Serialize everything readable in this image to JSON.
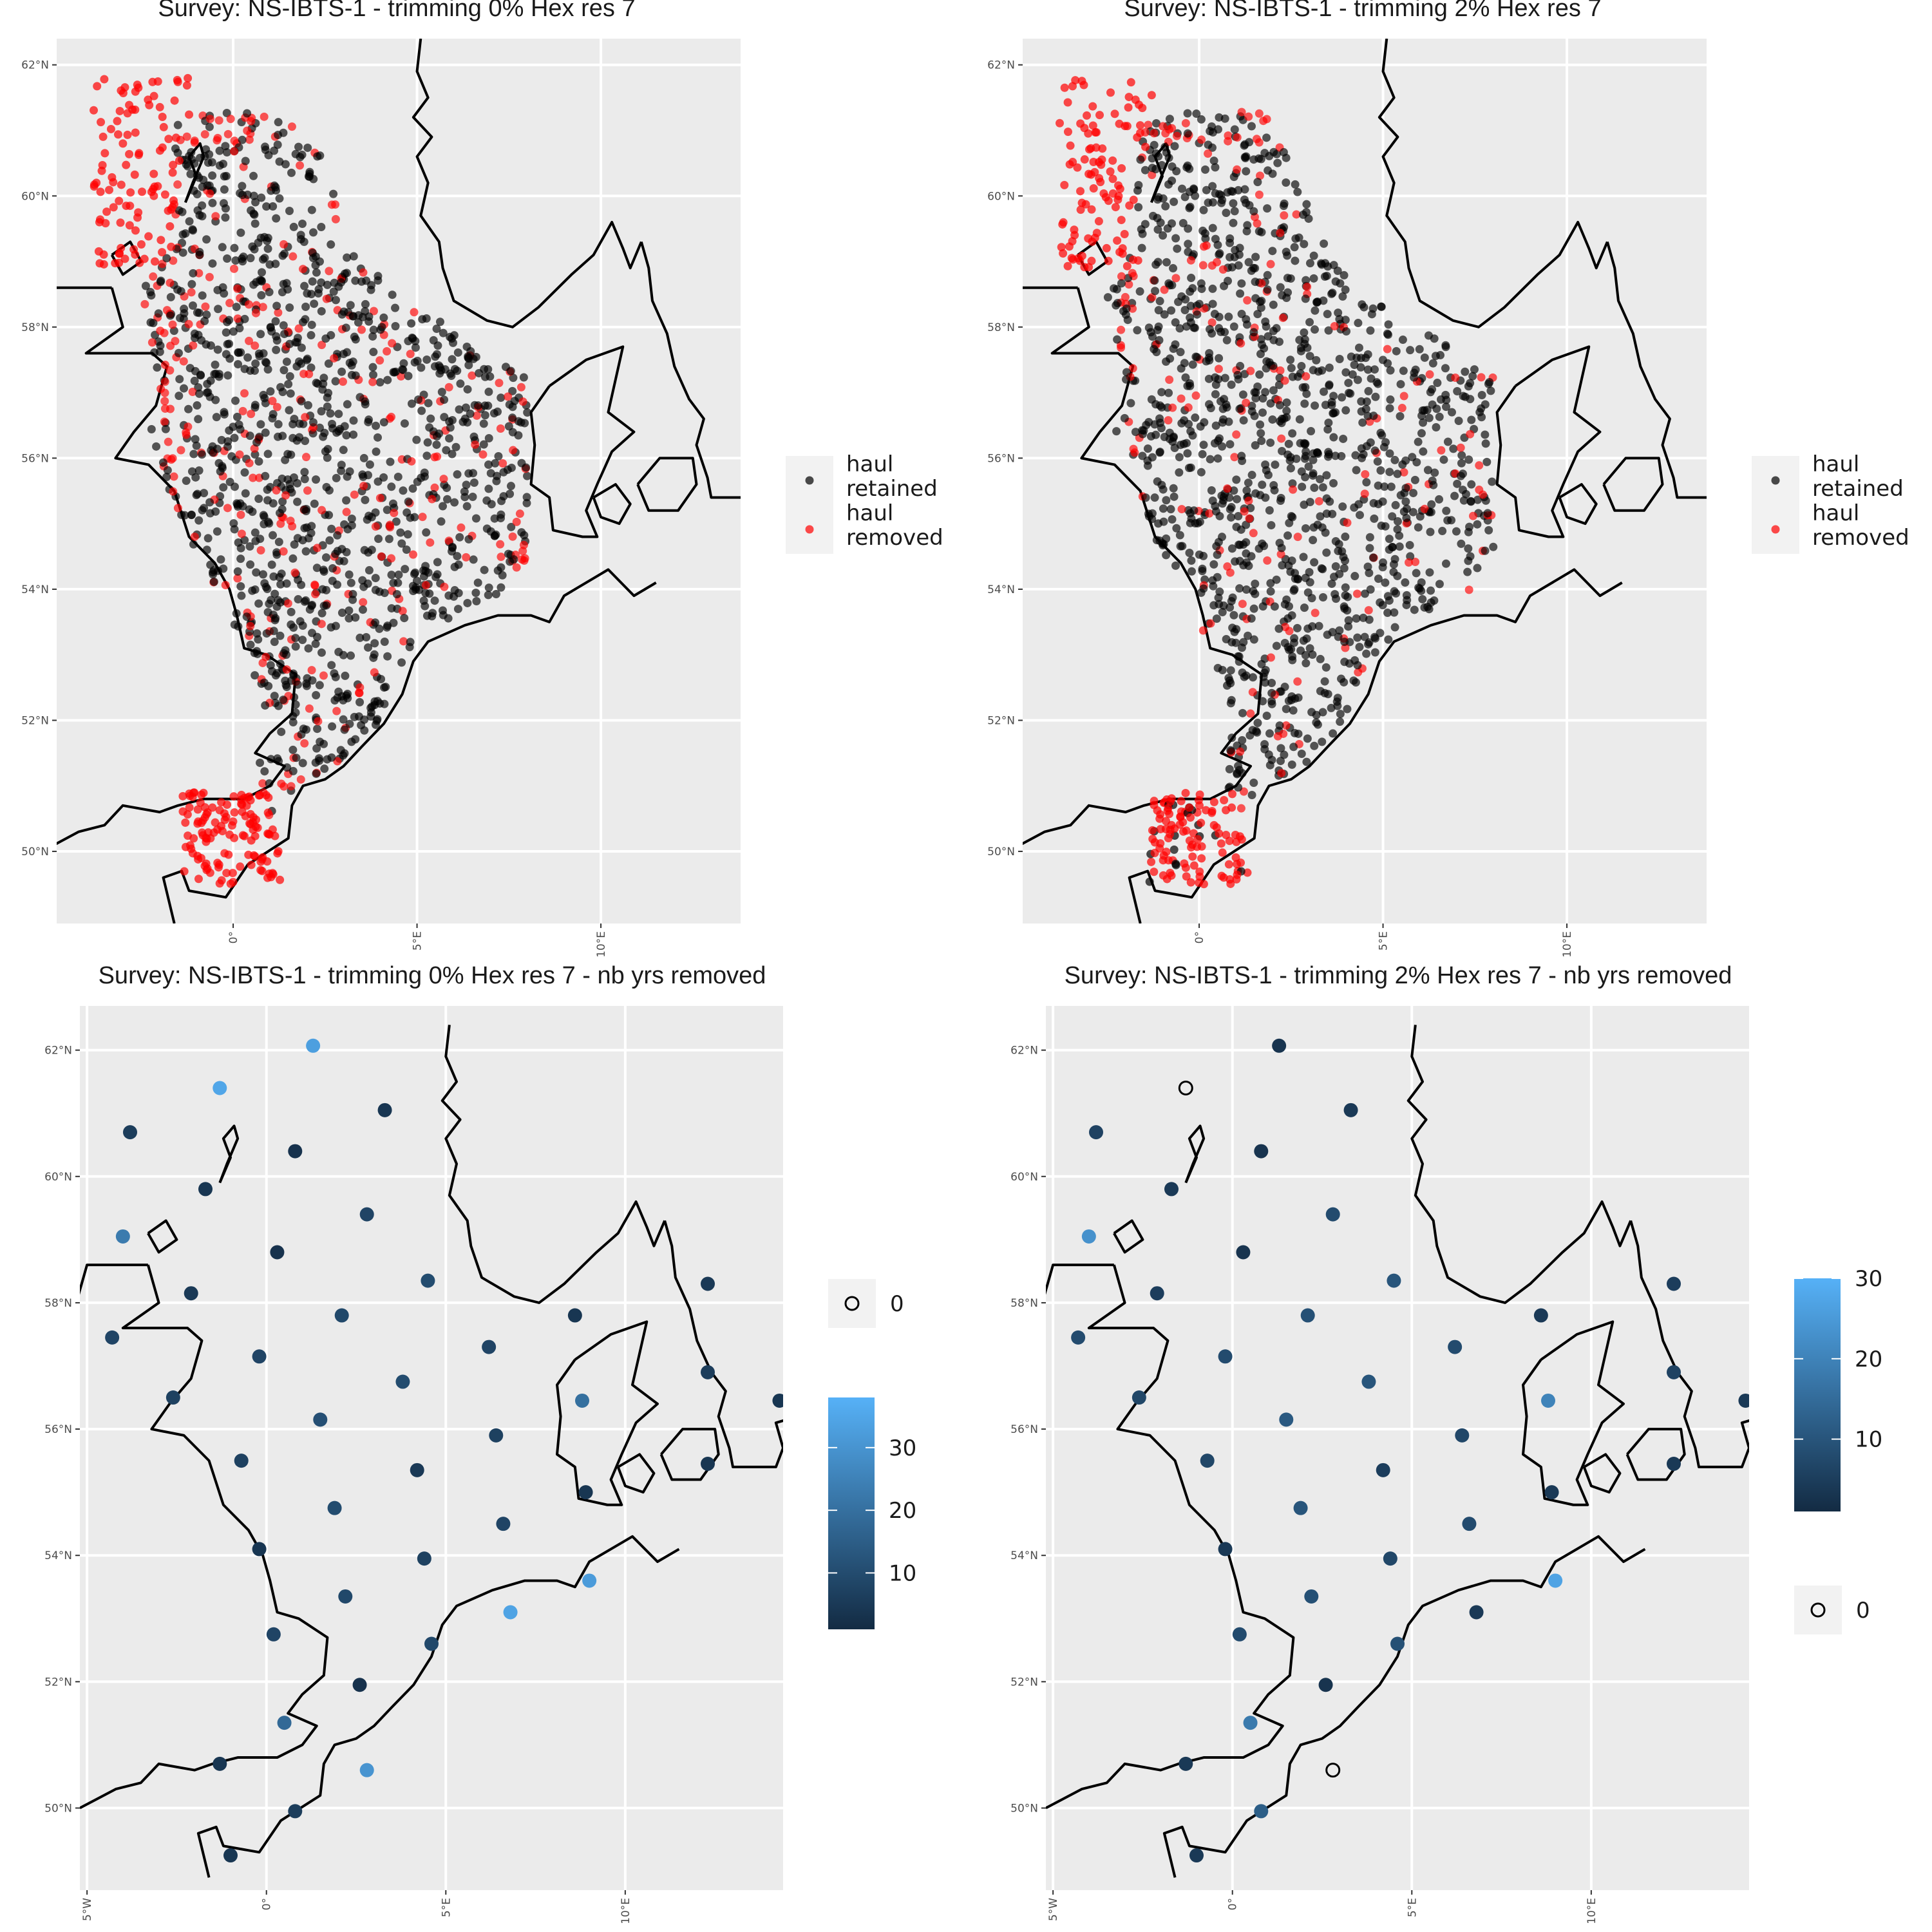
{
  "chart_data": [
    {
      "type": "scatter",
      "title": "Survey: NS-IBTS-1 - trimming 0% Hex res 7",
      "xlim": [
        -4.8,
        13.8
      ],
      "ylim": [
        48.9,
        62.4
      ],
      "x_ticks": [
        {
          "v": 0,
          "label": "0°"
        },
        {
          "v": 5,
          "label": "5°E"
        },
        {
          "v": 10,
          "label": "10°E"
        }
      ],
      "y_ticks": [
        {
          "v": 50,
          "label": "50°N"
        },
        {
          "v": 52,
          "label": "52°N"
        },
        {
          "v": 54,
          "label": "54°N"
        },
        {
          "v": 56,
          "label": "56°N"
        },
        {
          "v": 58,
          "label": "58°N"
        },
        {
          "v": 60,
          "label": "60°N"
        },
        {
          "v": 62,
          "label": "62°N"
        }
      ],
      "grid": true,
      "legend_placement": "right",
      "legend": [
        {
          "label_lines": [
            "haul",
            "retained"
          ],
          "color": "#000000"
        },
        {
          "label_lines": [
            "haul",
            "removed"
          ],
          "color": "#ff0000"
        }
      ],
      "series": [
        {
          "name": "haul retained",
          "color": "#000000",
          "note": "dense cloud of hauls covering the North Sea, English Channel and Skagerrak/Kattegat"
        },
        {
          "name": "haul removed",
          "color": "#ff0000",
          "note": "removed hauls at the Shetland margin, northern edge, English Channel and German Bight coast"
        }
      ]
    },
    {
      "type": "scatter",
      "title": "Survey: NS-IBTS-1 - trimming 2% Hex res 7",
      "xlim": [
        -4.8,
        13.8
      ],
      "ylim": [
        48.9,
        62.4
      ],
      "x_ticks": [
        {
          "v": 0,
          "label": "0°"
        },
        {
          "v": 5,
          "label": "5°E"
        },
        {
          "v": 10,
          "label": "10°E"
        }
      ],
      "y_ticks": [
        {
          "v": 50,
          "label": "50°N"
        },
        {
          "v": 52,
          "label": "52°N"
        },
        {
          "v": 54,
          "label": "54°N"
        },
        {
          "v": 56,
          "label": "56°N"
        },
        {
          "v": 58,
          "label": "58°N"
        },
        {
          "v": 60,
          "label": "60°N"
        },
        {
          "v": 62,
          "label": "62°N"
        }
      ],
      "grid": true,
      "legend_placement": "right",
      "legend": [
        {
          "label_lines": [
            "haul",
            "retained"
          ],
          "color": "#000000"
        },
        {
          "label_lines": [
            "haul",
            "removed"
          ],
          "color": "#ff0000"
        }
      ],
      "series": [
        {
          "name": "haul retained",
          "color": "#000000",
          "note": "dense cloud of hauls covering the North Sea and Skagerrak/Kattegat"
        },
        {
          "name": "haul removed",
          "color": "#ff0000",
          "note": "removed hauls mainly west of Shetland, English Channel and Dutch/German coast"
        }
      ]
    },
    {
      "type": "scatter",
      "title": "Survey: NS-IBTS-1 - trimming 0% Hex res 7 - nb yrs removed",
      "xlim": [
        -5.2,
        14.4
      ],
      "ylim": [
        48.7,
        62.7
      ],
      "x_ticks": [
        {
          "v": -5,
          "label": "5°W"
        },
        {
          "v": 0,
          "label": "0°"
        },
        {
          "v": 5,
          "label": "5°E"
        },
        {
          "v": 10,
          "label": "10°E"
        }
      ],
      "y_ticks": [
        {
          "v": 50,
          "label": "50°N"
        },
        {
          "v": 52,
          "label": "52°N"
        },
        {
          "v": 54,
          "label": "54°N"
        },
        {
          "v": 56,
          "label": "56°N"
        },
        {
          "v": 58,
          "label": "58°N"
        },
        {
          "v": 60,
          "label": "60°N"
        },
        {
          "v": 62,
          "label": "62°N"
        }
      ],
      "grid": true,
      "legend_placement": "right",
      "legend_open": {
        "label": "0"
      },
      "colorbar": {
        "min": 1,
        "max": 38,
        "ticks": [
          10,
          20,
          30
        ],
        "low": "#132b43",
        "high": "#56b1f7",
        "order": "open-first"
      },
      "points": [
        {
          "lon": 1.3,
          "lat": 62.07,
          "v": 33
        },
        {
          "lon": -1.3,
          "lat": 61.4,
          "v": 35
        },
        {
          "lon": -3.8,
          "lat": 60.7,
          "v": 6
        },
        {
          "lon": 3.3,
          "lat": 61.05,
          "v": 4
        },
        {
          "lon": 0.8,
          "lat": 60.4,
          "v": 3
        },
        {
          "lon": -1.7,
          "lat": 59.8,
          "v": 4
        },
        {
          "lon": -4.0,
          "lat": 59.05,
          "v": 23
        },
        {
          "lon": 2.8,
          "lat": 59.4,
          "v": 8
        },
        {
          "lon": 0.3,
          "lat": 58.8,
          "v": 3
        },
        {
          "lon": 4.5,
          "lat": 58.35,
          "v": 10
        },
        {
          "lon": -2.1,
          "lat": 58.15,
          "v": 5
        },
        {
          "lon": 12.3,
          "lat": 58.3,
          "v": 5
        },
        {
          "lon": 8.6,
          "lat": 57.8,
          "v": 4
        },
        {
          "lon": 2.1,
          "lat": 57.8,
          "v": 9
        },
        {
          "lon": -4.3,
          "lat": 57.45,
          "v": 8
        },
        {
          "lon": 6.2,
          "lat": 57.3,
          "v": 8
        },
        {
          "lon": -0.2,
          "lat": 57.15,
          "v": 8
        },
        {
          "lon": 3.8,
          "lat": 56.75,
          "v": 10
        },
        {
          "lon": 12.3,
          "lat": 56.9,
          "v": 6
        },
        {
          "lon": -2.6,
          "lat": 56.5,
          "v": 7
        },
        {
          "lon": 8.8,
          "lat": 56.45,
          "v": 20
        },
        {
          "lon": 14.3,
          "lat": 56.45,
          "v": 4
        },
        {
          "lon": 1.5,
          "lat": 56.15,
          "v": 11
        },
        {
          "lon": 6.4,
          "lat": 55.9,
          "v": 7
        },
        {
          "lon": -0.7,
          "lat": 55.5,
          "v": 7
        },
        {
          "lon": 4.2,
          "lat": 55.35,
          "v": 5
        },
        {
          "lon": 12.3,
          "lat": 55.45,
          "v": 4
        },
        {
          "lon": 8.9,
          "lat": 55.0,
          "v": 4
        },
        {
          "lon": 1.9,
          "lat": 54.75,
          "v": 10
        },
        {
          "lon": 6.6,
          "lat": 54.5,
          "v": 8
        },
        {
          "lon": -0.2,
          "lat": 54.1,
          "v": 4
        },
        {
          "lon": 4.4,
          "lat": 53.95,
          "v": 7
        },
        {
          "lon": 9.0,
          "lat": 53.6,
          "v": 32
        },
        {
          "lon": 2.2,
          "lat": 53.35,
          "v": 9
        },
        {
          "lon": 6.8,
          "lat": 53.1,
          "v": 34
        },
        {
          "lon": 0.2,
          "lat": 52.75,
          "v": 8
        },
        {
          "lon": 4.6,
          "lat": 52.6,
          "v": 9
        },
        {
          "lon": 2.6,
          "lat": 51.95,
          "v": 3
        },
        {
          "lon": 0.5,
          "lat": 51.35,
          "v": 18
        },
        {
          "lon": -1.3,
          "lat": 50.7,
          "v": 4
        },
        {
          "lon": 2.8,
          "lat": 50.6,
          "v": 30
        },
        {
          "lon": 0.8,
          "lat": 49.95,
          "v": 6
        },
        {
          "lon": -1.0,
          "lat": 49.25,
          "v": 4
        }
      ],
      "zero_points": []
    },
    {
      "type": "scatter",
      "title": "Survey: NS-IBTS-1 - trimming 2% Hex res 7 - nb yrs removed",
      "xlim": [
        -5.2,
        14.4
      ],
      "ylim": [
        48.7,
        62.7
      ],
      "x_ticks": [
        {
          "v": -5,
          "label": "5°W"
        },
        {
          "v": 0,
          "label": "0°"
        },
        {
          "v": 5,
          "label": "5°E"
        },
        {
          "v": 10,
          "label": "10°E"
        }
      ],
      "y_ticks": [
        {
          "v": 50,
          "label": "50°N"
        },
        {
          "v": 52,
          "label": "52°N"
        },
        {
          "v": 54,
          "label": "54°N"
        },
        {
          "v": 56,
          "label": "56°N"
        },
        {
          "v": 58,
          "label": "58°N"
        },
        {
          "v": 60,
          "label": "60°N"
        },
        {
          "v": 62,
          "label": "62°N"
        }
      ],
      "grid": true,
      "legend_placement": "right",
      "legend_open": {
        "label": "0"
      },
      "colorbar": {
        "min": 1,
        "max": 30,
        "ticks": [
          10,
          20,
          30
        ],
        "low": "#132b43",
        "high": "#56b1f7",
        "order": "colorbar-first"
      },
      "points": [
        {
          "lon": 1.3,
          "lat": 62.07,
          "v": 3
        },
        {
          "lon": -3.8,
          "lat": 60.7,
          "v": 6
        },
        {
          "lon": 3.3,
          "lat": 61.05,
          "v": 4
        },
        {
          "lon": 0.8,
          "lat": 60.4,
          "v": 3
        },
        {
          "lon": -1.7,
          "lat": 59.8,
          "v": 4
        },
        {
          "lon": -4.0,
          "lat": 59.05,
          "v": 23
        },
        {
          "lon": 2.8,
          "lat": 59.4,
          "v": 8
        },
        {
          "lon": 0.3,
          "lat": 58.8,
          "v": 3
        },
        {
          "lon": 4.5,
          "lat": 58.35,
          "v": 10
        },
        {
          "lon": -2.1,
          "lat": 58.15,
          "v": 5
        },
        {
          "lon": 12.3,
          "lat": 58.3,
          "v": 5
        },
        {
          "lon": 8.6,
          "lat": 57.8,
          "v": 4
        },
        {
          "lon": 2.1,
          "lat": 57.8,
          "v": 9
        },
        {
          "lon": -4.3,
          "lat": 57.45,
          "v": 8
        },
        {
          "lon": 6.2,
          "lat": 57.3,
          "v": 8
        },
        {
          "lon": -0.2,
          "lat": 57.15,
          "v": 8
        },
        {
          "lon": 3.8,
          "lat": 56.75,
          "v": 10
        },
        {
          "lon": 12.3,
          "lat": 56.9,
          "v": 6
        },
        {
          "lon": -2.6,
          "lat": 56.5,
          "v": 7
        },
        {
          "lon": 8.8,
          "lat": 56.45,
          "v": 20
        },
        {
          "lon": 14.3,
          "lat": 56.45,
          "v": 4
        },
        {
          "lon": 1.5,
          "lat": 56.15,
          "v": 11
        },
        {
          "lon": 6.4,
          "lat": 55.9,
          "v": 7
        },
        {
          "lon": -0.7,
          "lat": 55.5,
          "v": 7
        },
        {
          "lon": 4.2,
          "lat": 55.35,
          "v": 5
        },
        {
          "lon": 12.3,
          "lat": 55.45,
          "v": 4
        },
        {
          "lon": 8.9,
          "lat": 55.0,
          "v": 4
        },
        {
          "lon": 1.9,
          "lat": 54.75,
          "v": 10
        },
        {
          "lon": 6.6,
          "lat": 54.5,
          "v": 8
        },
        {
          "lon": -0.2,
          "lat": 54.1,
          "v": 4
        },
        {
          "lon": 4.4,
          "lat": 53.95,
          "v": 7
        },
        {
          "lon": 9.0,
          "lat": 53.6,
          "v": 27
        },
        {
          "lon": 2.2,
          "lat": 53.35,
          "v": 9
        },
        {
          "lon": 6.8,
          "lat": 53.1,
          "v": 4
        },
        {
          "lon": 0.2,
          "lat": 52.75,
          "v": 8
        },
        {
          "lon": 4.6,
          "lat": 52.6,
          "v": 9
        },
        {
          "lon": 2.6,
          "lat": 51.95,
          "v": 3
        },
        {
          "lon": 0.5,
          "lat": 51.35,
          "v": 18
        },
        {
          "lon": -1.3,
          "lat": 50.7,
          "v": 4
        },
        {
          "lon": 0.8,
          "lat": 49.95,
          "v": 12
        },
        {
          "lon": -1.0,
          "lat": 49.25,
          "v": 4
        }
      ],
      "zero_points": [
        {
          "lon": -1.3,
          "lat": 61.4
        },
        {
          "lon": 2.8,
          "lat": 50.6
        }
      ]
    }
  ]
}
